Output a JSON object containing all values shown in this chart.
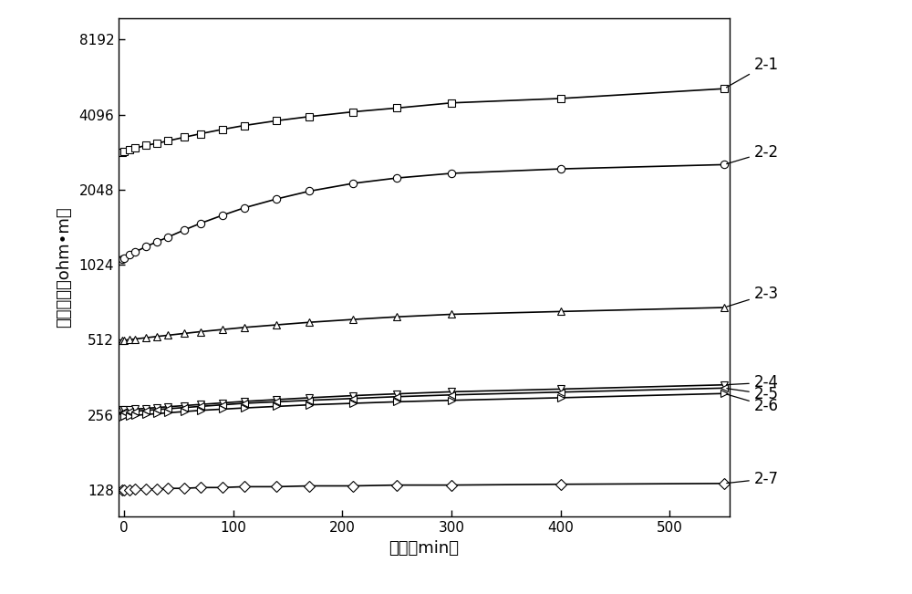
{
  "title": "",
  "xlabel": "时间（min）",
  "ylabel": "视电阔率（ohm•m）",
  "xmin": -5,
  "xmax": 555,
  "ymin": 100,
  "ymax": 10000,
  "xticks": [
    0,
    100,
    200,
    300,
    400,
    500
  ],
  "yticks": [
    128,
    256,
    512,
    1024,
    2048,
    4096,
    8192
  ],
  "ytick_labels": [
    "128",
    "256",
    "512",
    "1024",
    "2048",
    "4096",
    "8192"
  ],
  "series": [
    {
      "label": "2-1",
      "marker": "s",
      "x": [
        -10,
        -8,
        -6,
        -4,
        -2,
        0,
        5,
        10,
        20,
        30,
        40,
        55,
        70,
        90,
        110,
        140,
        170,
        210,
        250,
        300,
        400,
        550
      ],
      "y": [
        2820,
        2840,
        2860,
        2880,
        2900,
        2920,
        2960,
        3000,
        3080,
        3140,
        3210,
        3320,
        3430,
        3570,
        3700,
        3870,
        4020,
        4200,
        4350,
        4560,
        4750,
        5200
      ]
    },
    {
      "label": "2-2",
      "marker": "o",
      "x": [
        -10,
        -8,
        -6,
        -4,
        -2,
        0,
        5,
        10,
        20,
        30,
        40,
        55,
        70,
        90,
        110,
        140,
        170,
        210,
        250,
        300,
        400,
        550
      ],
      "y": [
        1020,
        1030,
        1045,
        1060,
        1075,
        1090,
        1120,
        1150,
        1210,
        1265,
        1320,
        1410,
        1500,
        1615,
        1730,
        1880,
        2020,
        2170,
        2280,
        2380,
        2480,
        2580
      ]
    },
    {
      "label": "2-3",
      "marker": "^",
      "x": [
        -10,
        -8,
        -6,
        -4,
        -2,
        0,
        5,
        10,
        20,
        30,
        40,
        55,
        70,
        90,
        110,
        140,
        170,
        210,
        250,
        300,
        400,
        550
      ],
      "y": [
        505,
        506,
        507,
        508,
        509,
        510,
        513,
        516,
        522,
        528,
        534,
        543,
        552,
        563,
        574,
        588,
        602,
        618,
        633,
        648,
        665,
        690
      ]
    },
    {
      "label": "2-4",
      "marker": "v",
      "x": [
        -10,
        -8,
        -6,
        -4,
        -2,
        0,
        5,
        10,
        20,
        30,
        40,
        55,
        70,
        90,
        110,
        140,
        170,
        210,
        250,
        300,
        400,
        550
      ],
      "y": [
        266,
        267,
        267,
        267,
        268,
        268,
        269,
        270,
        272,
        274,
        276,
        279,
        282,
        286,
        290,
        295,
        300,
        306,
        311,
        317,
        325,
        338
      ]
    },
    {
      "label": "2-5",
      "marker": "<",
      "x": [
        -10,
        -8,
        -6,
        -4,
        -2,
        0,
        5,
        10,
        20,
        30,
        40,
        55,
        70,
        90,
        110,
        140,
        170,
        210,
        250,
        300,
        400,
        550
      ],
      "y": [
        260,
        261,
        261,
        262,
        262,
        263,
        264,
        265,
        267,
        269,
        271,
        274,
        277,
        281,
        285,
        289,
        293,
        298,
        303,
        308,
        316,
        328
      ]
    },
    {
      "label": "2-6",
      "marker": ">",
      "x": [
        -10,
        -8,
        -6,
        -4,
        -2,
        0,
        5,
        10,
        20,
        30,
        40,
        55,
        70,
        90,
        110,
        140,
        170,
        210,
        250,
        300,
        400,
        550
      ],
      "y": [
        250,
        251,
        251,
        252,
        252,
        253,
        254,
        255,
        257,
        259,
        261,
        264,
        267,
        270,
        273,
        277,
        281,
        285,
        289,
        293,
        300,
        312
      ]
    },
    {
      "label": "2-7",
      "marker": "D",
      "x": [
        -10,
        -8,
        -6,
        -4,
        -2,
        0,
        5,
        10,
        20,
        30,
        40,
        55,
        70,
        90,
        110,
        140,
        170,
        210,
        250,
        300,
        400,
        550
      ],
      "y": [
        127,
        127,
        127,
        128,
        128,
        128,
        128,
        129,
        129,
        129,
        130,
        130,
        131,
        131,
        132,
        132,
        133,
        133,
        134,
        134,
        135,
        136
      ]
    }
  ],
  "line_color": "#000000",
  "marker_facecolor": "white",
  "marker_edgecolor": "#000000",
  "markersize": 6,
  "linewidth": 1.2,
  "bg_color": "#ffffff",
  "label_y_data": [
    5200,
    2580,
    690,
    338,
    328,
    312,
    136
  ],
  "label_texts": [
    "2-1",
    "2-2",
    "2-3",
    "2-4",
    "2-5",
    "2-6",
    "2-7"
  ],
  "label_y_text": [
    6500,
    2900,
    780,
    345,
    310,
    278,
    142
  ]
}
